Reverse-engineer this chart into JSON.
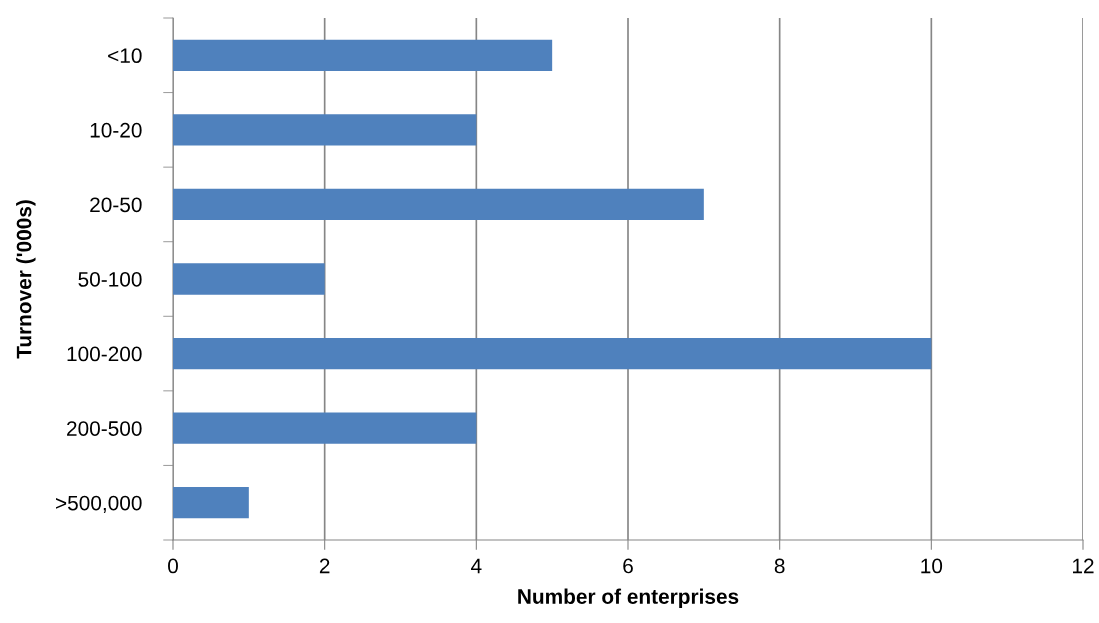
{
  "chart_data": {
    "type": "bar",
    "orientation": "horizontal",
    "xlabel": "Number of enterprises",
    "ylabel": "Turnover ('000s)",
    "categories": [
      "<10",
      "10-20",
      "20-50",
      "50-100",
      "100-200",
      "200-500",
      ">500,000"
    ],
    "values": [
      5,
      4,
      7,
      2,
      10,
      4,
      1
    ],
    "color": "#4f81bd",
    "xlim": [
      0,
      12
    ],
    "xticks": [
      0,
      2,
      4,
      6,
      8,
      10,
      12
    ],
    "grid": "x"
  }
}
